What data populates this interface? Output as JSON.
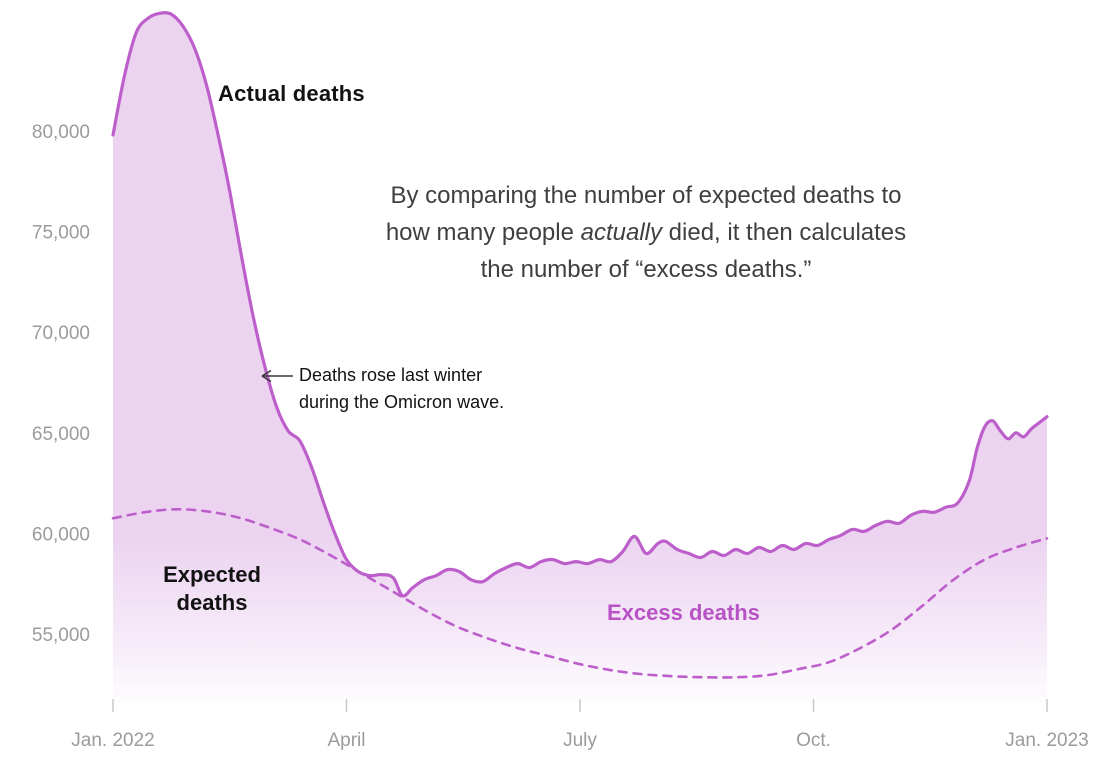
{
  "chart_data": {
    "type": "area",
    "description_visible_text_only": "Actual vs expected deaths with shaded excess deaths",
    "x_axis": {
      "unit": "months since Jan 2022",
      "range_months": [
        0,
        12
      ],
      "ticks": [
        {
          "label": "Jan. 2022",
          "m": 0
        },
        {
          "label": "April",
          "m": 3
        },
        {
          "label": "July",
          "m": 6
        },
        {
          "label": "Oct.",
          "m": 9
        },
        {
          "label": "Jan. 2023",
          "m": 12
        }
      ]
    },
    "y_axis": {
      "range": [
        52500,
        86000
      ],
      "ticks": [
        {
          "value": 80000,
          "label": "80,000"
        },
        {
          "value": 75000,
          "label": "75,000"
        },
        {
          "value": 70000,
          "label": "70,000"
        },
        {
          "value": 65000,
          "label": "65,000"
        },
        {
          "value": 60000,
          "label": "60,000"
        },
        {
          "value": 55000,
          "label": "55,000"
        }
      ],
      "grid": false
    },
    "legend_position": "inline-annotations",
    "series": [
      {
        "name": "Actual deaths",
        "style": "solid",
        "points": [
          [
            0,
            79800
          ],
          [
            0.15,
            82800
          ],
          [
            0.3,
            84900
          ],
          [
            0.45,
            85600
          ],
          [
            0.6,
            85850
          ],
          [
            0.75,
            85800
          ],
          [
            0.9,
            85200
          ],
          [
            1.05,
            84100
          ],
          [
            1.2,
            82300
          ],
          [
            1.35,
            79800
          ],
          [
            1.5,
            77000
          ],
          [
            1.65,
            73800
          ],
          [
            1.8,
            70800
          ],
          [
            1.95,
            68300
          ],
          [
            2.1,
            66300
          ],
          [
            2.25,
            65100
          ],
          [
            2.4,
            64600
          ],
          [
            2.55,
            63300
          ],
          [
            2.7,
            61600
          ],
          [
            2.85,
            60000
          ],
          [
            3,
            58700
          ],
          [
            3.15,
            58100
          ],
          [
            3.3,
            57900
          ],
          [
            3.45,
            57950
          ],
          [
            3.6,
            57800
          ],
          [
            3.72,
            56900
          ],
          [
            3.85,
            57300
          ],
          [
            4,
            57700
          ],
          [
            4.15,
            57900
          ],
          [
            4.3,
            58200
          ],
          [
            4.45,
            58100
          ],
          [
            4.6,
            57700
          ],
          [
            4.75,
            57600
          ],
          [
            4.9,
            58000
          ],
          [
            5.05,
            58300
          ],
          [
            5.2,
            58500
          ],
          [
            5.35,
            58300
          ],
          [
            5.5,
            58600
          ],
          [
            5.65,
            58700
          ],
          [
            5.8,
            58500
          ],
          [
            5.95,
            58600
          ],
          [
            6.1,
            58500
          ],
          [
            6.25,
            58700
          ],
          [
            6.4,
            58600
          ],
          [
            6.55,
            59100
          ],
          [
            6.7,
            59850
          ],
          [
            6.85,
            59000
          ],
          [
            7,
            59500
          ],
          [
            7.1,
            59600
          ],
          [
            7.25,
            59200
          ],
          [
            7.4,
            59000
          ],
          [
            7.55,
            58800
          ],
          [
            7.7,
            59100
          ],
          [
            7.85,
            58900
          ],
          [
            8,
            59200
          ],
          [
            8.15,
            59000
          ],
          [
            8.3,
            59300
          ],
          [
            8.45,
            59100
          ],
          [
            8.6,
            59400
          ],
          [
            8.75,
            59200
          ],
          [
            8.9,
            59500
          ],
          [
            9.05,
            59400
          ],
          [
            9.2,
            59700
          ],
          [
            9.35,
            59900
          ],
          [
            9.5,
            60200
          ],
          [
            9.65,
            60100
          ],
          [
            9.8,
            60400
          ],
          [
            9.95,
            60600
          ],
          [
            10.1,
            60500
          ],
          [
            10.25,
            60900
          ],
          [
            10.4,
            61100
          ],
          [
            10.55,
            61050
          ],
          [
            10.7,
            61300
          ],
          [
            10.85,
            61500
          ],
          [
            11,
            62600
          ],
          [
            11.1,
            64200
          ],
          [
            11.2,
            65300
          ],
          [
            11.3,
            65600
          ],
          [
            11.4,
            65100
          ],
          [
            11.5,
            64700
          ],
          [
            11.6,
            65000
          ],
          [
            11.7,
            64800
          ],
          [
            11.8,
            65200
          ],
          [
            11.9,
            65500
          ],
          [
            12,
            65800
          ]
        ]
      },
      {
        "name": "Expected deaths",
        "style": "dashed",
        "points": [
          [
            0,
            60750
          ],
          [
            0.4,
            61050
          ],
          [
            0.8,
            61200
          ],
          [
            1.2,
            61100
          ],
          [
            1.6,
            60800
          ],
          [
            2,
            60300
          ],
          [
            2.4,
            59700
          ],
          [
            2.8,
            58900
          ],
          [
            3.2,
            58000
          ],
          [
            3.6,
            57100
          ],
          [
            4,
            56200
          ],
          [
            4.4,
            55400
          ],
          [
            4.8,
            54800
          ],
          [
            5.2,
            54300
          ],
          [
            5.6,
            53900
          ],
          [
            6,
            53500
          ],
          [
            6.4,
            53200
          ],
          [
            6.8,
            53000
          ],
          [
            7.2,
            52900
          ],
          [
            7.6,
            52850
          ],
          [
            8,
            52850
          ],
          [
            8.4,
            52950
          ],
          [
            8.8,
            53250
          ],
          [
            9.2,
            53600
          ],
          [
            9.6,
            54300
          ],
          [
            10,
            55200
          ],
          [
            10.4,
            56400
          ],
          [
            10.8,
            57700
          ],
          [
            11.2,
            58700
          ],
          [
            11.6,
            59300
          ],
          [
            12,
            59750
          ]
        ]
      }
    ]
  },
  "labels": {
    "actual": "Actual deaths",
    "expected_line1": "Expected",
    "expected_line2": "deaths",
    "excess": "Excess deaths"
  },
  "annotations": {
    "main_line1": "By comparing the number of expected deaths to",
    "main_line2_pre": "how many people ",
    "main_line2_italic": "actually",
    "main_line2_post": " died, it then calculates",
    "main_line3": "the number of “excess deaths.”",
    "arrow_line1": "Deaths rose last winter",
    "arrow_line2": "during the Omicron wave."
  },
  "colors": {
    "line": "#bd5fcb",
    "fill": "#ecd4f1",
    "excess_label": "#b753c5",
    "axis_text": "#9b9b9b",
    "note_text": "#3f3f3f",
    "arrow": "#3a3a3a"
  }
}
